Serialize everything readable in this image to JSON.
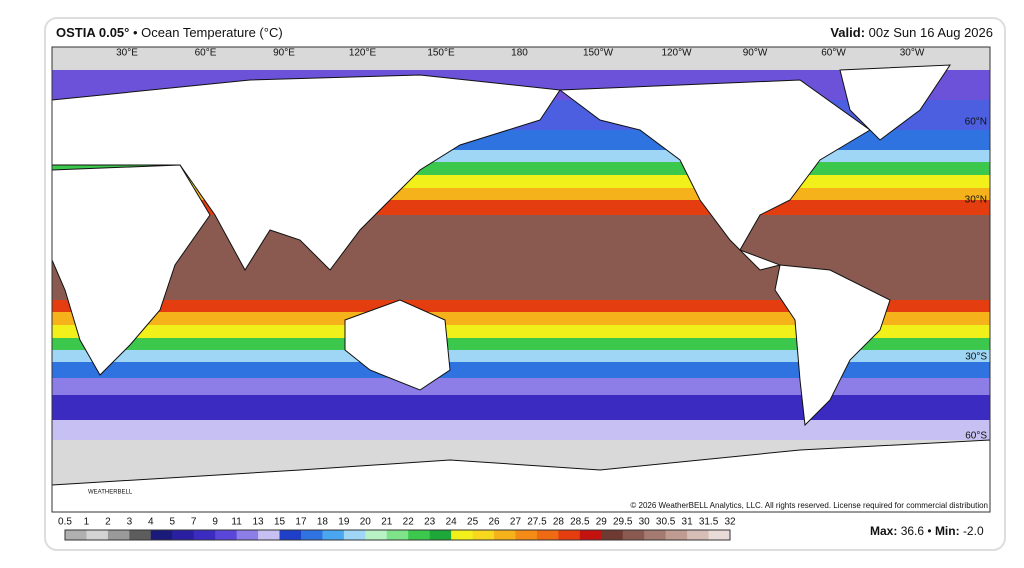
{
  "header": {
    "product": "OSTIA 0.05°",
    "title": "• Ocean Temperature (°C)",
    "valid_label": "Valid:",
    "valid_time": "00z Sun 16 Aug 2026"
  },
  "map": {
    "longitude_labels": [
      "30°E",
      "60°E",
      "90°E",
      "120°E",
      "150°E",
      "180",
      "150°W",
      "120°W",
      "90°W",
      "60°W",
      "30°W"
    ],
    "latitude_labels": [
      "60°N",
      "30°N",
      "30°S",
      "60°S"
    ],
    "watermark": "WEATHERBELL",
    "copyright": "© 2026 WeatherBELL Analytics, LLC. All rights reserved. License required for commercial distribution"
  },
  "colorbar": {
    "labels": [
      "0.5",
      "1",
      "2",
      "3",
      "4",
      "5",
      "7",
      "9",
      "11",
      "13",
      "15",
      "17",
      "18",
      "19",
      "20",
      "21",
      "22",
      "23",
      "24",
      "25",
      "26",
      "27",
      "27.5",
      "28",
      "28.5",
      "29",
      "29.5",
      "30",
      "30.5",
      "31",
      "31.5",
      "32"
    ],
    "colors": [
      "#b0b0b0",
      "#d3d3d3",
      "#9a9a9a",
      "#5d5d5d",
      "#1a1a7a",
      "#2a1fa0",
      "#3c2bc0",
      "#5a46d8",
      "#8c7ee6",
      "#c7c0f2",
      "#1e3fc8",
      "#2f73e0",
      "#4aa6ee",
      "#9fd6f6",
      "#b9f2c5",
      "#7fe38a",
      "#3cc84d",
      "#1ea83a",
      "#f2f01a",
      "#f7d81f",
      "#f6b21b",
      "#f48b17",
      "#ee6a13",
      "#e33d10",
      "#c4120f",
      "#6e3a32",
      "#8a5a50",
      "#a57a70",
      "#bf9b92",
      "#d6bdb6",
      "#e9dcd8"
    ]
  },
  "stats": {
    "max_label": "Max:",
    "max": "36.6",
    "separator": "•",
    "min_label": "Min:",
    "min": "-2.0"
  }
}
